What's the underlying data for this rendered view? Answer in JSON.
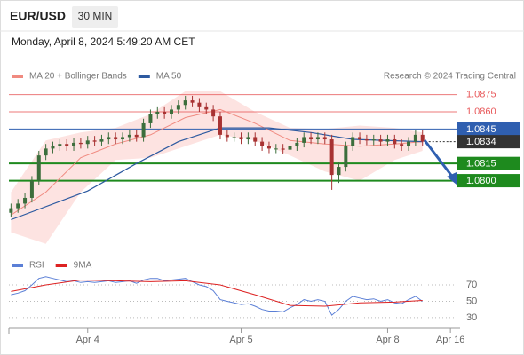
{
  "header": {
    "symbol": "EUR/USD",
    "interval": "30 MIN",
    "timestamp": "Monday, April 8, 2024 5:49:20 AM CET"
  },
  "chart_data": [
    {
      "type": "candlestick",
      "credit": "Research © 2024 Trading Central",
      "xlim": [
        -0.3,
        64
      ],
      "ylim": [
        1.0737,
        1.0884
      ],
      "candles": {
        "up_color": "#3c6e3c",
        "down_color": "#a83232",
        "open": [
          1.0772,
          1.0776,
          1.078,
          1.0785,
          1.08,
          1.0822,
          1.0828,
          1.083,
          1.0832,
          1.083,
          1.0833,
          1.0832,
          1.0835,
          1.0834,
          1.0836,
          1.0838,
          1.0836,
          1.0838,
          1.084,
          1.0838,
          1.085,
          1.0858,
          1.086,
          1.0858,
          1.0862,
          1.0866,
          1.087,
          1.0868,
          1.0864,
          1.0862,
          1.0856,
          1.084,
          1.0838,
          1.0838,
          1.0836,
          1.0838,
          1.0834,
          1.083,
          1.0828,
          1.0828,
          1.0827,
          1.083,
          1.0833,
          1.0838,
          1.0836,
          1.0838,
          1.0836,
          1.0805,
          1.0812,
          1.083,
          1.0838,
          1.0836,
          1.0835,
          1.0836,
          1.0834,
          1.0836,
          1.0832,
          1.083,
          1.0834,
          1.084
        ],
        "high": [
          1.078,
          1.0784,
          1.0789,
          1.0804,
          1.0826,
          1.0832,
          1.0834,
          1.0836,
          1.0836,
          1.0837,
          1.0837,
          1.0839,
          1.0839,
          1.084,
          1.0842,
          1.0842,
          1.0842,
          1.0844,
          1.0844,
          1.0854,
          1.0862,
          1.0864,
          1.0864,
          1.0866,
          1.087,
          1.0874,
          1.0874,
          1.0872,
          1.0868,
          1.0866,
          1.086,
          1.0844,
          1.0842,
          1.0842,
          1.0842,
          1.0842,
          1.0838,
          1.0834,
          1.0832,
          1.0832,
          1.0834,
          1.0837,
          1.0842,
          1.0842,
          1.0842,
          1.0842,
          1.084,
          1.0816,
          1.0834,
          1.0842,
          1.0842,
          1.084,
          1.084,
          1.084,
          1.084,
          1.084,
          1.0836,
          1.0838,
          1.0844,
          1.0844
        ],
        "low": [
          1.0768,
          1.0772,
          1.0776,
          1.0781,
          1.0796,
          1.0818,
          1.0824,
          1.0826,
          1.0826,
          1.0826,
          1.0828,
          1.0828,
          1.083,
          1.083,
          1.0832,
          1.0832,
          1.0832,
          1.0834,
          1.0834,
          1.0834,
          1.0846,
          1.0854,
          1.0854,
          1.0854,
          1.0858,
          1.0862,
          1.0864,
          1.086,
          1.0858,
          1.0852,
          1.0836,
          1.0834,
          1.0834,
          1.0832,
          1.0832,
          1.083,
          1.0826,
          1.0824,
          1.0824,
          1.0823,
          1.0823,
          1.0826,
          1.0829,
          1.0832,
          1.0832,
          1.0832,
          1.0792,
          1.0798,
          1.0808,
          1.0826,
          1.0832,
          1.0831,
          1.0831,
          1.083,
          1.083,
          1.0828,
          1.0826,
          1.0826,
          1.083,
          1.083
        ],
        "close": [
          1.0776,
          1.078,
          1.0785,
          1.08,
          1.0822,
          1.0828,
          1.083,
          1.0832,
          1.083,
          1.0833,
          1.0832,
          1.0835,
          1.0834,
          1.0836,
          1.0838,
          1.0836,
          1.0838,
          1.084,
          1.0838,
          1.085,
          1.0858,
          1.086,
          1.0858,
          1.0862,
          1.0866,
          1.087,
          1.0868,
          1.0864,
          1.0862,
          1.0856,
          1.084,
          1.0838,
          1.0838,
          1.0836,
          1.0838,
          1.0834,
          1.083,
          1.0828,
          1.0828,
          1.0827,
          1.083,
          1.0833,
          1.0838,
          1.0836,
          1.0838,
          1.0836,
          1.0805,
          1.0812,
          1.083,
          1.0838,
          1.0836,
          1.0835,
          1.0836,
          1.0834,
          1.0836,
          1.0832,
          1.083,
          1.0834,
          1.084,
          1.0834
        ]
      },
      "series": [
        {
          "name": "MA 20 + Bollinger Bands",
          "color": "#f08a80",
          "band_color": "#fde3e1",
          "x": [
            0,
            5,
            10,
            15,
            20,
            25,
            30,
            35,
            40,
            45,
            50,
            55,
            59
          ],
          "values": [
            1.077,
            1.079,
            1.082,
            1.0832,
            1.084,
            1.0855,
            1.0862,
            1.085,
            1.0835,
            1.0832,
            1.083,
            1.0832,
            1.0834
          ],
          "upper": [
            1.079,
            1.0835,
            1.0842,
            1.0846,
            1.0858,
            1.0878,
            1.0878,
            1.086,
            1.0846,
            1.0845,
            1.0848,
            1.0846,
            1.0842
          ],
          "lower": [
            1.0755,
            1.0745,
            1.079,
            1.0818,
            1.082,
            1.083,
            1.084,
            1.0835,
            1.0822,
            1.0808,
            1.08,
            1.0818,
            1.0826
          ]
        },
        {
          "name": "MA 50",
          "color": "#2d5aa0",
          "x": [
            0,
            11,
            18,
            24,
            30,
            37,
            43,
            49,
            59
          ],
          "values": [
            1.0766,
            1.0791,
            1.0815,
            1.0834,
            1.0846,
            1.0846,
            1.0842,
            1.0836,
            1.0834
          ]
        }
      ],
      "levels": [
        {
          "value": 1.0875,
          "label": "1.0875",
          "color": "#e8585a",
          "label_style": "text",
          "line": "solid"
        },
        {
          "value": 1.086,
          "label": "1.0860",
          "color": "#e8585a",
          "label_style": "text",
          "line": "solid"
        },
        {
          "value": 1.0845,
          "label": "1.0845",
          "color": "#2f5fb0",
          "label_style": "box",
          "line": "solid"
        },
        {
          "value": 1.0834,
          "label": "1.0834",
          "color": "#333333",
          "label_style": "box",
          "line": "dotted"
        },
        {
          "value": 1.0815,
          "label": "1.0815",
          "color": "#1e8a1e",
          "label_style": "box",
          "line": "solid"
        },
        {
          "value": 1.08,
          "label": "1.0800",
          "color": "#1e8a1e",
          "label_style": "box",
          "line": "solid"
        }
      ]
    },
    {
      "type": "line",
      "xlim": [
        -0.3,
        64
      ],
      "ylim": [
        19,
        82
      ],
      "yticks": [
        70,
        50,
        30
      ],
      "grid": true,
      "xticks": [
        {
          "value": 11,
          "label": "Apr 4"
        },
        {
          "value": 33,
          "label": "Apr 5"
        },
        {
          "value": 54,
          "label": "Apr 8"
        },
        {
          "value": 63,
          "label": "Apr 16"
        }
      ],
      "series": [
        {
          "name": "RSI",
          "color": "#5b7fd6",
          "values": [
            58,
            60,
            63,
            70,
            78,
            80,
            78,
            76,
            74,
            75,
            73,
            74,
            73,
            74,
            75,
            73,
            74,
            75,
            72,
            76,
            78,
            78,
            75,
            76,
            77,
            78,
            74,
            70,
            68,
            63,
            52,
            50,
            48,
            46,
            47,
            44,
            40,
            38,
            38,
            37,
            42,
            46,
            52,
            50,
            52,
            50,
            33,
            40,
            50,
            56,
            54,
            52,
            53,
            50,
            52,
            48,
            47,
            52,
            56,
            50
          ]
        },
        {
          "name": "9MA",
          "color": "#dd2222",
          "x": [
            0,
            5,
            10,
            15,
            20,
            25,
            30,
            35,
            40,
            45,
            50,
            55,
            59
          ],
          "values": [
            62,
            70,
            76,
            75,
            74,
            75,
            70,
            58,
            45,
            44,
            48,
            49,
            51
          ]
        }
      ]
    }
  ]
}
